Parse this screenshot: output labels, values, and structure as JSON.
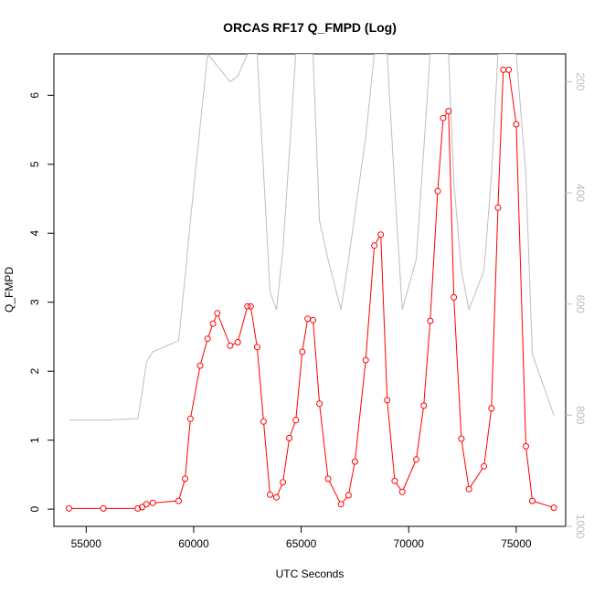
{
  "chart_data": {
    "type": "line",
    "title": "ORCAS RF17 Q_FMPD (Log)",
    "xlabel": "UTC Seconds",
    "ylabel": "Q_FMPD",
    "xlim": [
      53500,
      77300
    ],
    "ylim": [
      -0.25,
      6.6
    ],
    "x_ticks": [
      55000,
      60000,
      65000,
      70000,
      75000
    ],
    "y_ticks": [
      0,
      1,
      2,
      3,
      4,
      5,
      6
    ],
    "y2_ticks": [
      200,
      400,
      600,
      800,
      1000
    ],
    "y2_range": [
      1000,
      150
    ],
    "grid": false,
    "colors": {
      "q_fmpd": "#ff0000",
      "pressure": "#bebebe"
    },
    "series": [
      {
        "key": "q_fmpd",
        "axis": "left",
        "style": "line+circles",
        "x": [
          54200,
          55800,
          57400,
          57600,
          57800,
          58100,
          59300,
          59600,
          59850,
          60300,
          60650,
          60900,
          61100,
          61700,
          62050,
          62500,
          62650,
          62950,
          63250,
          63550,
          63850,
          64150,
          64450,
          64750,
          65050,
          65300,
          65550,
          65850,
          66250,
          66850,
          67200,
          67500,
          68000,
          68400,
          68700,
          69000,
          69350,
          69700,
          70350,
          70700,
          71000,
          71350,
          71600,
          71850,
          72100,
          72450,
          72800,
          73500,
          73850,
          74150,
          74400,
          74650,
          75000,
          75450,
          75750,
          76750
        ],
        "values": [
          0.01,
          0.01,
          0.01,
          0.03,
          0.07,
          0.09,
          0.12,
          0.44,
          1.31,
          2.08,
          2.47,
          2.69,
          2.84,
          2.37,
          2.42,
          2.94,
          2.94,
          2.35,
          1.27,
          0.21,
          0.17,
          0.39,
          1.03,
          1.29,
          2.28,
          2.76,
          2.74,
          1.53,
          0.44,
          0.07,
          0.2,
          0.69,
          2.16,
          3.82,
          3.98,
          1.58,
          0.41,
          0.25,
          0.72,
          1.5,
          2.73,
          4.61,
          5.67,
          5.77,
          3.07,
          1.02,
          0.29,
          0.62,
          1.46,
          4.37,
          6.37,
          6.37,
          5.58,
          0.91,
          0.12,
          0.02
        ]
      },
      {
        "key": "pressure",
        "axis": "right",
        "style": "line",
        "x": [
          54200,
          55800,
          57400,
          57600,
          57800,
          58100,
          59300,
          59600,
          59850,
          60650,
          61700,
          62050,
          62500,
          62650,
          62950,
          63550,
          63850,
          64150,
          64750,
          65300,
          65550,
          65850,
          66250,
          66850,
          67200,
          68000,
          68400,
          68700,
          69000,
          69350,
          69700,
          70350,
          71000,
          71350,
          71600,
          71850,
          72100,
          72450,
          72800,
          73500,
          73850,
          74150,
          74400,
          74650,
          75000,
          75450,
          75750,
          76750
        ],
        "values": [
          809,
          809,
          806,
          760,
          704,
          686,
          666,
          552,
          449,
          150,
          200,
          190,
          150,
          150,
          150,
          578,
          610,
          502,
          150,
          150,
          150,
          450,
          520,
          610,
          520,
          300,
          150,
          150,
          150,
          390,
          610,
          520,
          150,
          150,
          150,
          150,
          380,
          540,
          610,
          540,
          370,
          150,
          150,
          150,
          150,
          370,
          690,
          800
        ]
      }
    ]
  }
}
